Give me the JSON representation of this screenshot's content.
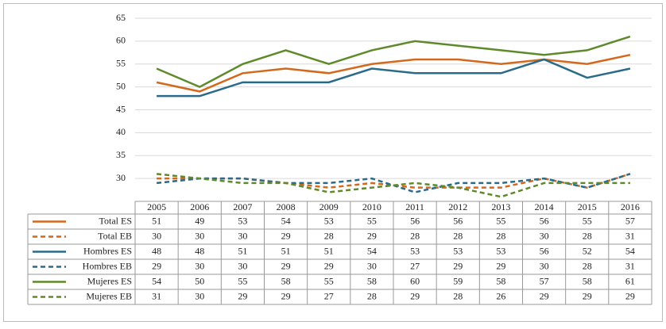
{
  "chart_data": {
    "type": "line",
    "categories": [
      "2005",
      "2006",
      "2007",
      "2008",
      "2009",
      "2010",
      "2011",
      "2012",
      "2013",
      "2014",
      "2015",
      "2016"
    ],
    "series": [
      {
        "name": "Total ES",
        "color": "#d2691e",
        "dashed": false,
        "values": [
          51,
          49,
          53,
          54,
          53,
          55,
          56,
          56,
          55,
          56,
          55,
          57
        ]
      },
      {
        "name": "Total EB",
        "color": "#d2691e",
        "dashed": true,
        "values": [
          30,
          30,
          30,
          29,
          28,
          29,
          28,
          28,
          28,
          30,
          28,
          31
        ]
      },
      {
        "name": "Hombres ES",
        "color": "#2a6b8a",
        "dashed": false,
        "values": [
          48,
          48,
          51,
          51,
          51,
          54,
          53,
          53,
          53,
          56,
          52,
          54
        ]
      },
      {
        "name": "Hombres EB",
        "color": "#2a6b8a",
        "dashed": true,
        "values": [
          29,
          30,
          30,
          29,
          29,
          30,
          27,
          29,
          29,
          30,
          28,
          31
        ]
      },
      {
        "name": "Mujeres ES",
        "color": "#5f8a2c",
        "dashed": false,
        "values": [
          54,
          50,
          55,
          58,
          55,
          58,
          60,
          59,
          58,
          57,
          58,
          61
        ]
      },
      {
        "name": "Mujeres EB",
        "color": "#5f8a2c",
        "dashed": true,
        "values": [
          31,
          30,
          29,
          29,
          27,
          28,
          29,
          28,
          26,
          29,
          29,
          29
        ]
      }
    ],
    "ylim": [
      25,
      65
    ],
    "yticks": [
      30,
      35,
      40,
      45,
      50,
      55,
      60,
      65
    ],
    "grid": true
  }
}
